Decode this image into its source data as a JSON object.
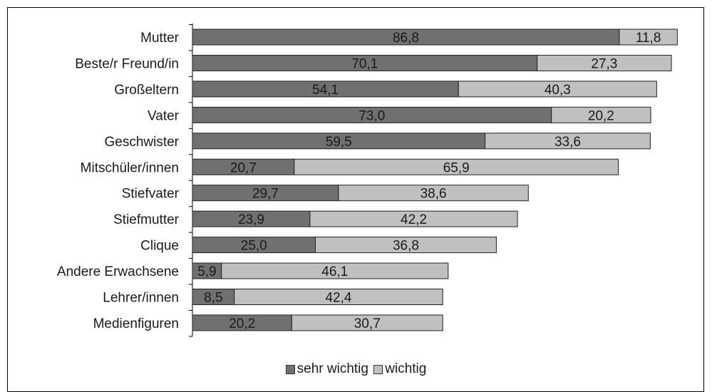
{
  "chart_data": {
    "type": "bar",
    "orientation": "horizontal",
    "stacked": true,
    "categories": [
      "Mutter",
      "Beste/r Freund/in",
      "Großeltern",
      "Vater",
      "Geschwister",
      "Mitschüler/innen",
      "Stiefvater",
      "Stiefmutter",
      "Clique",
      "Andere Erwachsene",
      "Lehrer/innen",
      "Medienfiguren"
    ],
    "series": [
      {
        "name": "sehr wichtig",
        "color": "#707070",
        "values": [
          86.8,
          70.1,
          54.1,
          73.0,
          59.5,
          20.7,
          29.7,
          23.9,
          25.0,
          5.9,
          8.5,
          20.2
        ],
        "labels": [
          "86,8",
          "70,1",
          "54,1",
          "73,0",
          "59,5",
          "20,7",
          "29,7",
          "23,9",
          "25,0",
          "5,9",
          "8,5",
          "20,2"
        ]
      },
      {
        "name": "wichtig",
        "color": "#c0c0c0",
        "values": [
          11.8,
          27.3,
          40.3,
          20.2,
          33.6,
          65.9,
          38.6,
          42.2,
          36.8,
          46.1,
          42.4,
          30.7
        ],
        "labels": [
          "11,8",
          "27,3",
          "40,3",
          "20,2",
          "33,6",
          "65,9",
          "38,6",
          "42,2",
          "36,8",
          "46,1",
          "42,4",
          "30,7"
        ]
      }
    ],
    "xlim": [
      0,
      100
    ],
    "grid": false,
    "legend_position": "bottom"
  }
}
